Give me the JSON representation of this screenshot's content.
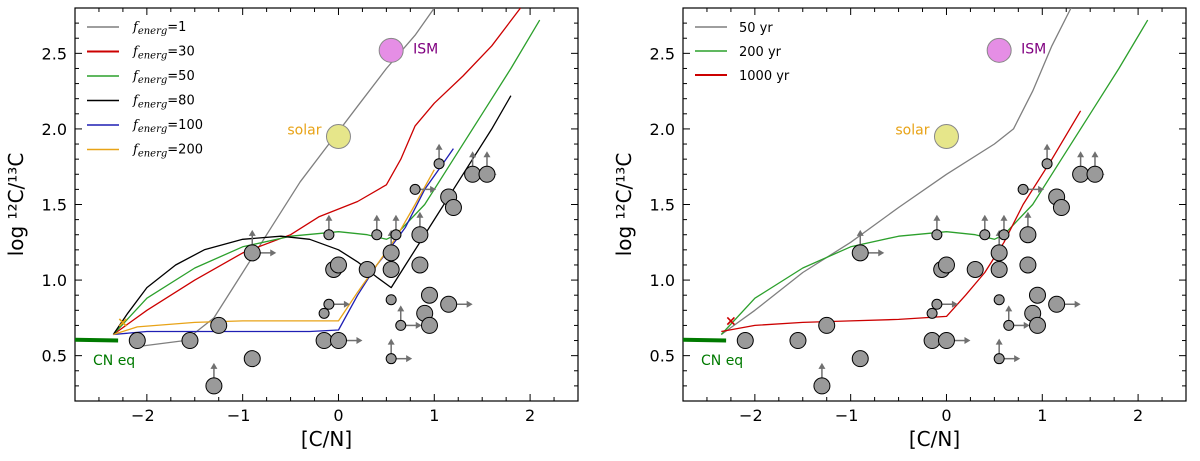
{
  "chart_data": [
    {
      "type": "line",
      "panel": "left",
      "xlabel": "[C/N]",
      "ylabel": "log ¹²C/¹³C",
      "xlim": [
        -2.75,
        2.5
      ],
      "ylim": [
        0.2,
        2.8
      ],
      "xticks": [
        -2,
        -1,
        0,
        1,
        2
      ],
      "yticks": [
        0.5,
        1.0,
        1.5,
        2.0,
        2.5
      ],
      "legend": {
        "position": "top-left"
      },
      "series": [
        {
          "name": "f_energ=1",
          "legend_prefix": "f",
          "legend_sub": "energ",
          "legend_suffix": "=1",
          "color": "#7f7f7f",
          "points": [
            [
              -2.1,
              0.56
            ],
            [
              -1.6,
              0.6
            ],
            [
              -1.3,
              0.75
            ],
            [
              -1.0,
              1.05
            ],
            [
              -0.7,
              1.35
            ],
            [
              -0.4,
              1.65
            ],
            [
              -0.1,
              1.9
            ],
            [
              0.2,
              2.15
            ],
            [
              0.5,
              2.4
            ],
            [
              0.8,
              2.62
            ],
            [
              1.0,
              2.8
            ]
          ]
        },
        {
          "name": "f_energ=30",
          "legend_prefix": "f",
          "legend_sub": "energ",
          "legend_suffix": "=30",
          "color": "#cc0000",
          "points": [
            [
              -2.35,
              0.64
            ],
            [
              -2.0,
              0.8
            ],
            [
              -1.5,
              1.0
            ],
            [
              -1.0,
              1.18
            ],
            [
              -0.5,
              1.3
            ],
            [
              -0.2,
              1.42
            ],
            [
              0.2,
              1.52
            ],
            [
              0.5,
              1.63
            ],
            [
              0.65,
              1.8
            ],
            [
              0.8,
              2.02
            ],
            [
              1.0,
              2.17
            ],
            [
              1.3,
              2.35
            ],
            [
              1.6,
              2.55
            ],
            [
              1.9,
              2.8
            ]
          ]
        },
        {
          "name": "f_energ=50",
          "legend_prefix": "f",
          "legend_sub": "energ",
          "legend_suffix": "=50",
          "color": "#2ca02c",
          "points": [
            [
              -2.35,
              0.64
            ],
            [
              -2.0,
              0.88
            ],
            [
              -1.5,
              1.08
            ],
            [
              -1.0,
              1.22
            ],
            [
              -0.5,
              1.29
            ],
            [
              0.0,
              1.32
            ],
            [
              0.3,
              1.3
            ],
            [
              0.5,
              1.27
            ],
            [
              0.6,
              1.3
            ],
            [
              0.9,
              1.5
            ],
            [
              1.2,
              1.8
            ],
            [
              1.5,
              2.1
            ],
            [
              1.8,
              2.4
            ],
            [
              2.1,
              2.72
            ]
          ]
        },
        {
          "name": "f_energ=80",
          "legend_prefix": "f",
          "legend_sub": "energ",
          "legend_suffix": "=80",
          "color": "#000000",
          "points": [
            [
              -2.35,
              0.64
            ],
            [
              -2.2,
              0.78
            ],
            [
              -2.0,
              0.95
            ],
            [
              -1.7,
              1.1
            ],
            [
              -1.4,
              1.2
            ],
            [
              -1.0,
              1.27
            ],
            [
              -0.6,
              1.29
            ],
            [
              -0.3,
              1.27
            ],
            [
              0.0,
              1.2
            ],
            [
              0.2,
              1.12
            ],
            [
              0.4,
              1.02
            ],
            [
              0.55,
              0.95
            ],
            [
              0.7,
              1.1
            ],
            [
              1.0,
              1.4
            ],
            [
              1.3,
              1.7
            ],
            [
              1.6,
              2.0
            ],
            [
              1.8,
              2.22
            ]
          ]
        },
        {
          "name": "f_energ=100",
          "legend_prefix": "f",
          "legend_sub": "energ",
          "legend_suffix": "=100",
          "color": "#1f1fb4",
          "points": [
            [
              -2.35,
              0.64
            ],
            [
              -2.0,
              0.66
            ],
            [
              -1.0,
              0.66
            ],
            [
              -0.3,
              0.66
            ],
            [
              0.0,
              0.67
            ],
            [
              0.2,
              0.9
            ],
            [
              0.4,
              1.1
            ],
            [
              0.55,
              1.22
            ],
            [
              0.7,
              1.35
            ],
            [
              0.9,
              1.6
            ],
            [
              1.1,
              1.78
            ],
            [
              1.2,
              1.87
            ]
          ]
        },
        {
          "name": "f_energ=200",
          "legend_prefix": "f",
          "legend_sub": "energ",
          "legend_suffix": "=200",
          "color": "#e8a317",
          "points": [
            [
              -2.35,
              0.64
            ],
            [
              -2.1,
              0.69
            ],
            [
              -1.5,
              0.72
            ],
            [
              -1.0,
              0.73
            ],
            [
              -0.5,
              0.73
            ],
            [
              0.0,
              0.73
            ],
            [
              0.2,
              0.92
            ],
            [
              0.4,
              1.1
            ],
            [
              0.6,
              1.28
            ],
            [
              0.8,
              1.5
            ],
            [
              1.0,
              1.73
            ]
          ]
        }
      ],
      "cn_eq": {
        "label": "CN eq",
        "color": "#007a00",
        "x": [
          -2.75,
          -2.3
        ],
        "y": [
          0.605,
          0.6
        ]
      },
      "start_marker": {
        "symbol": "×",
        "color": "#e8a317",
        "x": -2.25,
        "y": 0.73
      },
      "reference_points": [
        {
          "label": "ISM",
          "x": 0.55,
          "y": 2.52,
          "color": "#e58ee5",
          "label_color": "#800080"
        },
        {
          "label": "solar",
          "x": 0.0,
          "y": 1.95,
          "color": "#e6e68a",
          "label_color": "#e8a317"
        }
      ]
    },
    {
      "type": "line",
      "panel": "right",
      "xlabel": "[C/N]",
      "ylabel": "log ¹²C/¹³C",
      "xlim": [
        -2.75,
        2.5
      ],
      "ylim": [
        0.2,
        2.8
      ],
      "xticks": [
        -2,
        -1,
        0,
        1,
        2
      ],
      "yticks": [
        0.5,
        1.0,
        1.5,
        2.0,
        2.5
      ],
      "legend": {
        "position": "top-left"
      },
      "series": [
        {
          "name": "50 yr",
          "color": "#7f7f7f",
          "points": [
            [
              -2.35,
              0.64
            ],
            [
              -2.0,
              0.8
            ],
            [
              -1.5,
              1.05
            ],
            [
              -1.0,
              1.25
            ],
            [
              -0.5,
              1.48
            ],
            [
              0.0,
              1.7
            ],
            [
              0.5,
              1.9
            ],
            [
              0.7,
              2.0
            ],
            [
              0.9,
              2.25
            ],
            [
              1.1,
              2.55
            ],
            [
              1.3,
              2.8
            ]
          ]
        },
        {
          "name": "200 yr",
          "color": "#2ca02c",
          "points": [
            [
              -2.35,
              0.64
            ],
            [
              -2.0,
              0.88
            ],
            [
              -1.5,
              1.08
            ],
            [
              -1.0,
              1.22
            ],
            [
              -0.5,
              1.29
            ],
            [
              0.0,
              1.32
            ],
            [
              0.3,
              1.3
            ],
            [
              0.5,
              1.27
            ],
            [
              0.6,
              1.3
            ],
            [
              0.9,
              1.5
            ],
            [
              1.2,
              1.8
            ],
            [
              1.5,
              2.1
            ],
            [
              1.8,
              2.4
            ],
            [
              2.1,
              2.72
            ]
          ]
        },
        {
          "name": "1000 yr",
          "color": "#cc0000",
          "points": [
            [
              -2.35,
              0.66
            ],
            [
              -2.0,
              0.7
            ],
            [
              -1.5,
              0.72
            ],
            [
              -1.0,
              0.73
            ],
            [
              -0.5,
              0.74
            ],
            [
              0.0,
              0.76
            ],
            [
              0.2,
              0.9
            ],
            [
              0.4,
              1.05
            ],
            [
              0.6,
              1.25
            ],
            [
              0.8,
              1.5
            ],
            [
              1.1,
              1.8
            ],
            [
              1.4,
              2.12
            ]
          ]
        }
      ],
      "cn_eq": {
        "label": "CN eq",
        "color": "#007a00",
        "x": [
          -2.75,
          -2.3
        ],
        "y": [
          0.605,
          0.6
        ]
      },
      "start_marker": {
        "symbol": "×",
        "color": "#cc0000",
        "x": -2.25,
        "y": 0.74
      },
      "reference_points": [
        {
          "label": "ISM",
          "x": 0.55,
          "y": 2.52,
          "color": "#e58ee5",
          "label_color": "#800080"
        },
        {
          "label": "solar",
          "x": 0.0,
          "y": 1.95,
          "color": "#e6e68a",
          "label_color": "#e8a317"
        }
      ]
    }
  ],
  "observations": {
    "color": "#9a9a9a",
    "arrow_color": "#707070",
    "points": [
      {
        "x": -2.1,
        "y": 0.6,
        "size": "m",
        "limit": ""
      },
      {
        "x": -1.55,
        "y": 0.6,
        "size": "m",
        "limit": ""
      },
      {
        "x": -1.3,
        "y": 0.3,
        "size": "m",
        "limit": "up"
      },
      {
        "x": -1.25,
        "y": 0.7,
        "size": "m",
        "limit": ""
      },
      {
        "x": -0.9,
        "y": 0.48,
        "size": "m",
        "limit": ""
      },
      {
        "x": -0.9,
        "y": 1.18,
        "size": "m",
        "limit": "upright"
      },
      {
        "x": -0.15,
        "y": 0.78,
        "size": "s",
        "limit": ""
      },
      {
        "x": -0.15,
        "y": 0.6,
        "size": "m",
        "limit": ""
      },
      {
        "x": -0.1,
        "y": 1.3,
        "size": "s",
        "limit": "up"
      },
      {
        "x": -0.1,
        "y": 0.84,
        "size": "s",
        "limit": "right"
      },
      {
        "x": -0.05,
        "y": 1.07,
        "size": "m",
        "limit": ""
      },
      {
        "x": 0.0,
        "y": 0.6,
        "size": "m",
        "limit": "right"
      },
      {
        "x": 0.0,
        "y": 1.1,
        "size": "m",
        "limit": ""
      },
      {
        "x": 0.3,
        "y": 1.07,
        "size": "m",
        "limit": ""
      },
      {
        "x": 0.4,
        "y": 1.3,
        "size": "s",
        "limit": "up"
      },
      {
        "x": 0.55,
        "y": 1.18,
        "size": "m",
        "limit": "up"
      },
      {
        "x": 0.55,
        "y": 1.07,
        "size": "m",
        "limit": ""
      },
      {
        "x": 0.55,
        "y": 0.48,
        "size": "s",
        "limit": "upright"
      },
      {
        "x": 0.55,
        "y": 0.87,
        "size": "s",
        "limit": ""
      },
      {
        "x": 0.6,
        "y": 1.3,
        "size": "s",
        "limit": "up"
      },
      {
        "x": 0.65,
        "y": 0.7,
        "size": "s",
        "limit": "upright"
      },
      {
        "x": 0.8,
        "y": 1.6,
        "size": "s",
        "limit": "right"
      },
      {
        "x": 0.85,
        "y": 1.3,
        "size": "m",
        "limit": "up"
      },
      {
        "x": 0.85,
        "y": 1.1,
        "size": "m",
        "limit": ""
      },
      {
        "x": 0.9,
        "y": 0.78,
        "size": "m",
        "limit": ""
      },
      {
        "x": 0.95,
        "y": 0.9,
        "size": "m",
        "limit": ""
      },
      {
        "x": 0.95,
        "y": 0.7,
        "size": "m",
        "limit": ""
      },
      {
        "x": 1.05,
        "y": 1.77,
        "size": "s",
        "limit": "up"
      },
      {
        "x": 1.15,
        "y": 1.55,
        "size": "m",
        "limit": ""
      },
      {
        "x": 1.2,
        "y": 1.48,
        "size": "m",
        "limit": ""
      },
      {
        "x": 1.15,
        "y": 0.84,
        "size": "m",
        "limit": "right"
      },
      {
        "x": 1.4,
        "y": 1.7,
        "size": "m",
        "limit": "upright"
      },
      {
        "x": 1.55,
        "y": 1.7,
        "size": "m",
        "limit": "up"
      }
    ]
  }
}
